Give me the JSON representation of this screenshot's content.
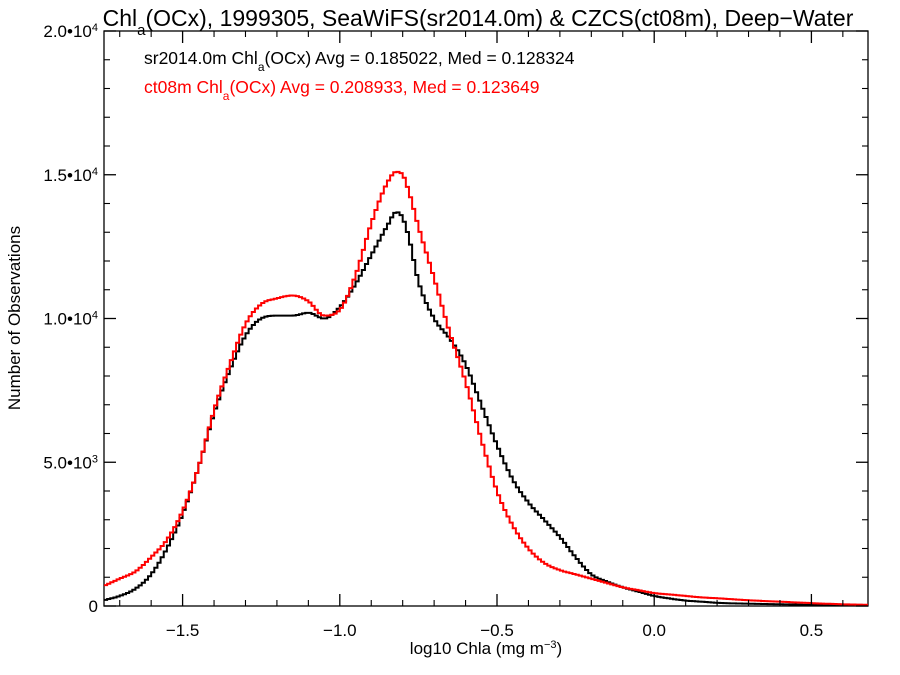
{
  "chart_data": {
    "type": "line",
    "title": {
      "pre": "Chl",
      "sub": "a",
      "post": "(OCx), 1999305, SeaWiFS(sr2014.0m) & CZCS(ct08m), Deep−Water"
    },
    "xlabel": {
      "pre": "log10 Chla (mg m",
      "sup": "−3",
      "post": ")"
    },
    "ylabel": "Number of Observations",
    "xlim": [
      -1.75,
      0.68
    ],
    "ylim": [
      0,
      20000
    ],
    "x_ticks": [
      {
        "value": -1.5,
        "label": "−1.5"
      },
      {
        "value": -1.0,
        "label": "−1.0"
      },
      {
        "value": -0.5,
        "label": "−0.5"
      },
      {
        "value": 0.0,
        "label": "0.0"
      },
      {
        "value": 0.5,
        "label": "0.5"
      }
    ],
    "y_ticks": [
      {
        "value": 0,
        "label": "0",
        "sup": ""
      },
      {
        "value": 5000,
        "label": "5.0•10",
        "sup": "3"
      },
      {
        "value": 10000,
        "label": "1.0•10",
        "sup": "4"
      },
      {
        "value": 15000,
        "label": "1.5•10",
        "sup": "4"
      },
      {
        "value": 20000,
        "label": "2.0•10",
        "sup": "4"
      }
    ],
    "legend_position": "top-left",
    "series": [
      {
        "name": "sr2014.0m",
        "color": "#000000",
        "legend": {
          "pre": "sr2014.0m Chl",
          "sub": "a",
          "post": "(OCx) Avg = 0.185022, Med = 0.128324"
        },
        "x": [
          -1.75,
          -1.7,
          -1.65,
          -1.6,
          -1.55,
          -1.5,
          -1.45,
          -1.4,
          -1.35,
          -1.3,
          -1.25,
          -1.2,
          -1.15,
          -1.1,
          -1.05,
          -1.0,
          -0.95,
          -0.9,
          -0.85,
          -0.82,
          -0.8,
          -0.78,
          -0.75,
          -0.7,
          -0.65,
          -0.6,
          -0.55,
          -0.5,
          -0.45,
          -0.4,
          -0.35,
          -0.3,
          -0.25,
          -0.2,
          -0.15,
          -0.1,
          -0.05,
          0.0,
          0.05,
          0.1,
          0.15,
          0.2,
          0.3,
          0.4,
          0.5,
          0.6,
          0.68
        ],
        "values": [
          200,
          350,
          600,
          1100,
          2000,
          3200,
          4800,
          6700,
          8200,
          9400,
          10000,
          10100,
          10100,
          10200,
          10000,
          10400,
          11200,
          12200,
          13200,
          13700,
          13500,
          12800,
          11300,
          10000,
          9300,
          8400,
          7000,
          5600,
          4400,
          3600,
          3000,
          2400,
          1700,
          1100,
          850,
          650,
          500,
          350,
          260,
          190,
          150,
          110,
          80,
          60,
          40,
          30,
          20
        ]
      },
      {
        "name": "ct08m",
        "color": "#ff0000",
        "legend": {
          "pre": "ct08m Chl",
          "sub": "a",
          "post": "(OCx) Avg = 0.208933, Med = 0.123649"
        },
        "x": [
          -1.75,
          -1.7,
          -1.65,
          -1.6,
          -1.55,
          -1.5,
          -1.45,
          -1.4,
          -1.35,
          -1.3,
          -1.25,
          -1.2,
          -1.15,
          -1.1,
          -1.05,
          -1.0,
          -0.95,
          -0.9,
          -0.85,
          -0.82,
          -0.8,
          -0.78,
          -0.75,
          -0.7,
          -0.65,
          -0.6,
          -0.55,
          -0.5,
          -0.45,
          -0.4,
          -0.35,
          -0.3,
          -0.25,
          -0.2,
          -0.15,
          -0.1,
          -0.05,
          0.0,
          0.05,
          0.1,
          0.15,
          0.2,
          0.3,
          0.4,
          0.5,
          0.6,
          0.68
        ],
        "values": [
          700,
          950,
          1200,
          1700,
          2300,
          3300,
          4800,
          6800,
          8400,
          9800,
          10500,
          10700,
          10800,
          10600,
          10100,
          10300,
          11500,
          13300,
          14700,
          15100,
          15000,
          14400,
          13200,
          11400,
          9500,
          7800,
          5800,
          4000,
          2800,
          2000,
          1500,
          1250,
          1100,
          950,
          800,
          650,
          550,
          450,
          400,
          350,
          300,
          270,
          200,
          150,
          100,
          60,
          40
        ]
      }
    ]
  }
}
